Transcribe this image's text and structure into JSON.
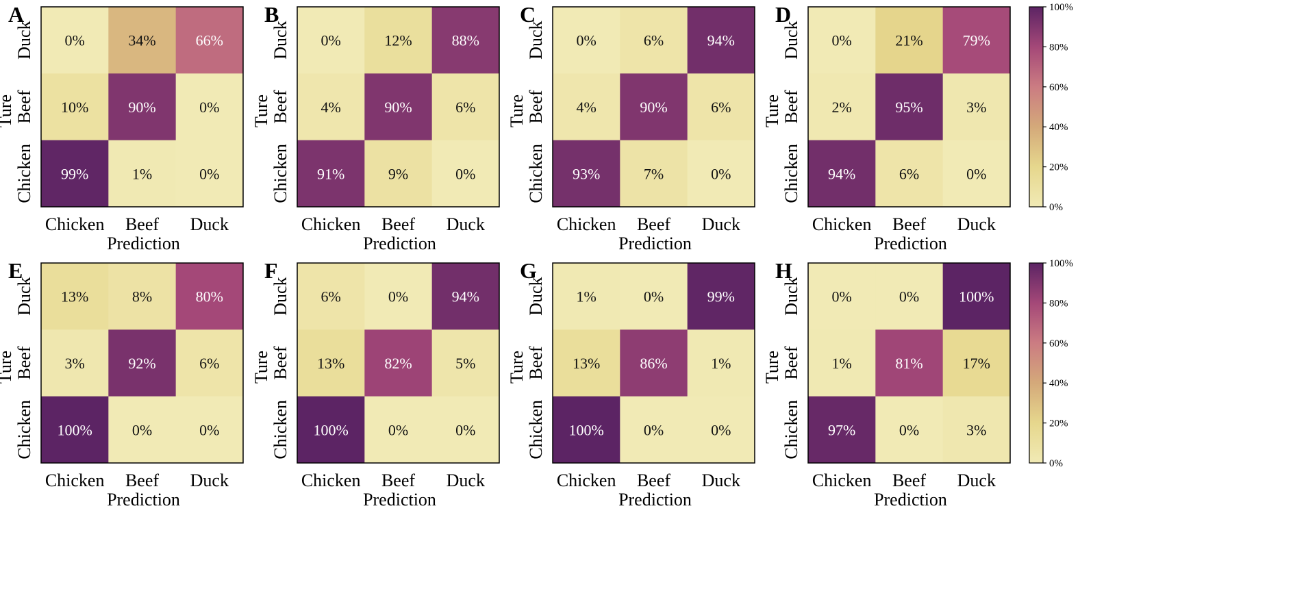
{
  "colorbar": {
    "ticks": [
      "0%",
      "20%",
      "40%",
      "60%",
      "80%",
      "100%"
    ],
    "stops": [
      "#f1eab5",
      "#e6d78d",
      "#d4a97a",
      "#cb7c82",
      "#a44878",
      "#5c2464"
    ]
  },
  "chart_data": [
    {
      "type": "heatmap",
      "panel": "A",
      "xlabel": "Prediction",
      "ylabel": "Ture",
      "x_categories": [
        "Chicken",
        "Beef",
        "Duck"
      ],
      "y_categories_top_to_bottom": [
        "Duck",
        "Beef",
        "Chicken"
      ],
      "values": [
        [
          0,
          34,
          66
        ],
        [
          10,
          90,
          0
        ],
        [
          99,
          1,
          0
        ]
      ],
      "labels": [
        [
          "0%",
          "34%",
          "66%"
        ],
        [
          "10%",
          "90%",
          "0%"
        ],
        [
          "99%",
          "1%",
          "0%"
        ]
      ],
      "zlim": [
        0,
        100
      ]
    },
    {
      "type": "heatmap",
      "panel": "B",
      "xlabel": "Prediction",
      "ylabel": "Ture",
      "x_categories": [
        "Chicken",
        "Beef",
        "Duck"
      ],
      "y_categories_top_to_bottom": [
        "Duck",
        "Beef",
        "Chicken"
      ],
      "values": [
        [
          0,
          12,
          88
        ],
        [
          4,
          90,
          6
        ],
        [
          91,
          9,
          0
        ]
      ],
      "labels": [
        [
          "0%",
          "12%",
          "88%"
        ],
        [
          "4%",
          "90%",
          "6%"
        ],
        [
          "91%",
          "9%",
          "0%"
        ]
      ],
      "zlim": [
        0,
        100
      ]
    },
    {
      "type": "heatmap",
      "panel": "C",
      "xlabel": "Prediction",
      "ylabel": "Ture",
      "x_categories": [
        "Chicken",
        "Beef",
        "Duck"
      ],
      "y_categories_top_to_bottom": [
        "Duck",
        "Beef",
        "Chicken"
      ],
      "values": [
        [
          0,
          6,
          94
        ],
        [
          4,
          90,
          6
        ],
        [
          93,
          7,
          0
        ]
      ],
      "labels": [
        [
          "0%",
          "6%",
          "94%"
        ],
        [
          "4%",
          "90%",
          "6%"
        ],
        [
          "93%",
          "7%",
          "0%"
        ]
      ],
      "zlim": [
        0,
        100
      ]
    },
    {
      "type": "heatmap",
      "panel": "D",
      "xlabel": "Prediction",
      "ylabel": "Ture",
      "x_categories": [
        "Chicken",
        "Beef",
        "Duck"
      ],
      "y_categories_top_to_bottom": [
        "Duck",
        "Beef",
        "Chicken"
      ],
      "values": [
        [
          0,
          21,
          79
        ],
        [
          2,
          95,
          3
        ],
        [
          94,
          6,
          0
        ]
      ],
      "labels": [
        [
          "0%",
          "21%",
          "79%"
        ],
        [
          "2%",
          "95%",
          "3%"
        ],
        [
          "94%",
          "6%",
          "0%"
        ]
      ],
      "zlim": [
        0,
        100
      ]
    },
    {
      "type": "heatmap",
      "panel": "E",
      "xlabel": "Prediction",
      "ylabel": "Ture",
      "x_categories": [
        "Chicken",
        "Beef",
        "Duck"
      ],
      "y_categories_top_to_bottom": [
        "Duck",
        "Beef",
        "Chicken"
      ],
      "values": [
        [
          13,
          8,
          80
        ],
        [
          3,
          92,
          6
        ],
        [
          100,
          0,
          0
        ]
      ],
      "labels": [
        [
          "13%",
          "8%",
          "80%"
        ],
        [
          "3%",
          "92%",
          "6%"
        ],
        [
          "100%",
          "0%",
          "0%"
        ]
      ],
      "zlim": [
        0,
        100
      ]
    },
    {
      "type": "heatmap",
      "panel": "F",
      "xlabel": "Prediction",
      "ylabel": "Ture",
      "x_categories": [
        "Chicken",
        "Beef",
        "Duck"
      ],
      "y_categories_top_to_bottom": [
        "Duck",
        "Beef",
        "Chicken"
      ],
      "values": [
        [
          6,
          0,
          94
        ],
        [
          13,
          82,
          5
        ],
        [
          100,
          0,
          0
        ]
      ],
      "labels": [
        [
          "6%",
          "0%",
          "94%"
        ],
        [
          "13%",
          "82%",
          "5%"
        ],
        [
          "100%",
          "0%",
          "0%"
        ]
      ],
      "zlim": [
        0,
        100
      ]
    },
    {
      "type": "heatmap",
      "panel": "G",
      "xlabel": "Prediction",
      "ylabel": "Ture",
      "x_categories": [
        "Chicken",
        "Beef",
        "Duck"
      ],
      "y_categories_top_to_bottom": [
        "Duck",
        "Beef",
        "Chicken"
      ],
      "values": [
        [
          1,
          0,
          99
        ],
        [
          13,
          86,
          1
        ],
        [
          100,
          0,
          0
        ]
      ],
      "labels": [
        [
          "1%",
          "0%",
          "99%"
        ],
        [
          "13%",
          "86%",
          "1%"
        ],
        [
          "100%",
          "0%",
          "0%"
        ]
      ],
      "zlim": [
        0,
        100
      ]
    },
    {
      "type": "heatmap",
      "panel": "H",
      "xlabel": "Prediction",
      "ylabel": "Ture",
      "x_categories": [
        "Chicken",
        "Beef",
        "Duck"
      ],
      "y_categories_top_to_bottom": [
        "Duck",
        "Beef",
        "Chicken"
      ],
      "values": [
        [
          0,
          0,
          100
        ],
        [
          1,
          81,
          17
        ],
        [
          97,
          0,
          3
        ]
      ],
      "labels": [
        [
          "0%",
          "0%",
          "100%"
        ],
        [
          "1%",
          "81%",
          "17%"
        ],
        [
          "97%",
          "0%",
          "3%"
        ]
      ],
      "zlim": [
        0,
        100
      ]
    }
  ]
}
